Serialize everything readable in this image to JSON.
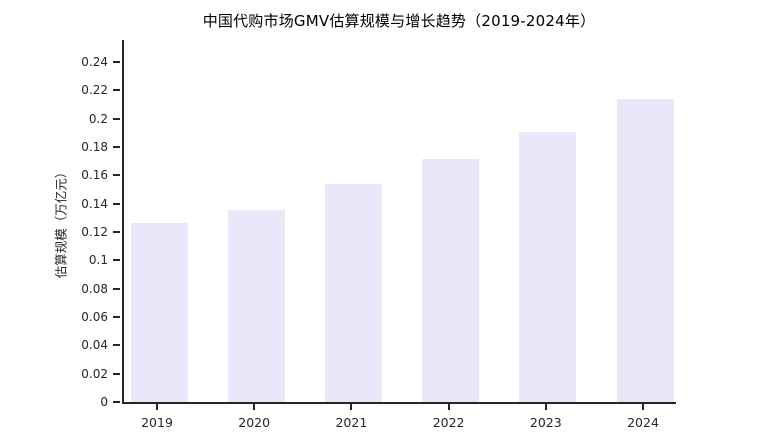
{
  "chart_data": {
    "type": "bar",
    "title": "中国代购市场GMV估算规模与增长趋势（2019-2024年）",
    "xlabel": "",
    "ylabel": "估算规模（万亿元）",
    "categories": [
      "2019",
      "2020",
      "2021",
      "2022",
      "2023",
      "2024"
    ],
    "values": [
      0.128,
      0.137,
      0.155,
      0.173,
      0.192,
      0.215
    ],
    "ylim": [
      0,
      0.255
    ],
    "yticks": [
      0,
      0.02,
      0.04,
      0.06,
      0.08,
      0.1,
      0.12,
      0.14,
      0.16,
      0.18,
      0.2,
      0.22,
      0.24
    ],
    "ytick_labels": [
      "0",
      "0.02",
      "0.04",
      "0.06",
      "0.08",
      "0.1",
      "0.12",
      "0.14",
      "0.16",
      "0.18",
      "0.2",
      "0.22",
      "0.24"
    ],
    "grid": false,
    "legend": null,
    "bar_color": "#e8e8fa",
    "axis_color": "#262626",
    "background_color": "#ffffff"
  }
}
